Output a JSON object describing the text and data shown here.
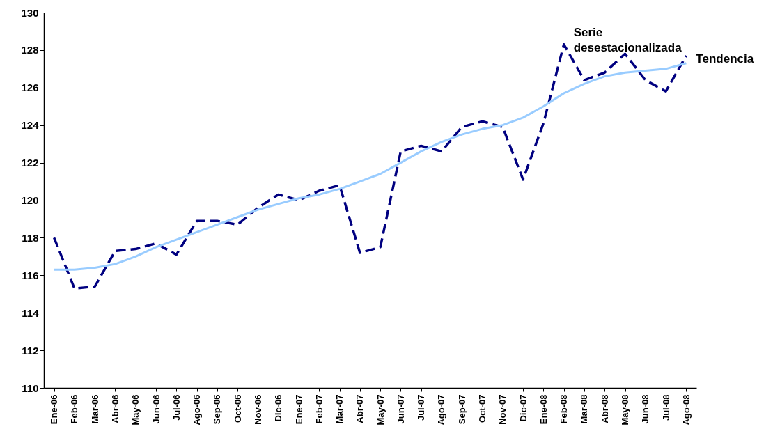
{
  "chart_data": {
    "type": "line",
    "categories": [
      "Ene-06",
      "Feb-06",
      "Mar-06",
      "Abr-06",
      "May-06",
      "Jun-06",
      "Jul-06",
      "Ago-06",
      "Sep-06",
      "Oct-06",
      "Nov-06",
      "Dic-06",
      "Ene-07",
      "Feb-07",
      "Mar-07",
      "Abr-07",
      "May-07",
      "Jun-07",
      "Jul-07",
      "Ago-07",
      "Sep-07",
      "Oct-07",
      "Nov-07",
      "Dic-07",
      "Ene-08",
      "Feb-08",
      "Mar-08",
      "Abr-08",
      "May-08",
      "Jun-08",
      "Jul-08",
      "Ago-08"
    ],
    "series": [
      {
        "name": "Serie desestacionalizada",
        "color": "#000080",
        "line_style": "dashed",
        "values": [
          118.0,
          115.3,
          115.4,
          117.3,
          117.4,
          117.7,
          117.1,
          118.9,
          118.9,
          118.7,
          119.6,
          120.3,
          120.0,
          120.5,
          120.8,
          117.2,
          117.5,
          122.6,
          122.9,
          122.6,
          123.9,
          124.2,
          123.9,
          121.1,
          124.1,
          128.3,
          126.4,
          126.8,
          127.8,
          126.4,
          125.8,
          127.7
        ]
      },
      {
        "name": "Tendencia",
        "color": "#99ccff",
        "line_style": "solid",
        "values": [
          116.3,
          116.3,
          116.4,
          116.6,
          117.0,
          117.5,
          117.9,
          118.3,
          118.7,
          119.1,
          119.5,
          119.8,
          120.1,
          120.3,
          120.6,
          121.0,
          121.4,
          122.0,
          122.6,
          123.1,
          123.5,
          123.8,
          124.0,
          124.4,
          125.0,
          125.7,
          126.2,
          126.6,
          126.8,
          126.9,
          127.0,
          127.3
        ]
      }
    ],
    "ylim": [
      110,
      130
    ],
    "yticks": [
      110,
      112,
      114,
      116,
      118,
      120,
      122,
      124,
      126,
      128,
      130
    ],
    "grid": false
  }
}
